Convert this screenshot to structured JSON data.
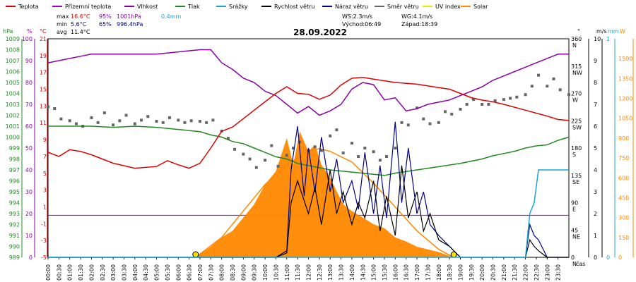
{
  "legend": [
    {
      "label": "Teplota",
      "color": "#dd0000"
    },
    {
      "label": "Přízemní teplota",
      "color": "#9b00c8"
    },
    {
      "label": "Vlhkost",
      "color": "#8a00a8"
    },
    {
      "label": "Tlak",
      "color": "#228822"
    },
    {
      "label": "Srážky",
      "color": "#1aa6d0"
    },
    {
      "label": "Rychlost větru",
      "color": "#000000"
    },
    {
      "label": "Náraz větru",
      "color": "#000080"
    },
    {
      "label": "Směr větru",
      "color": "#666666"
    },
    {
      "label": "UV index",
      "color": "#e8e800"
    },
    {
      "label": "Solar",
      "color": "#ff8800"
    }
  ],
  "stats": {
    "max_label": "max",
    "max_temp": "16.6°C",
    "max_hum": "95%",
    "max_press": "1001hPa",
    "max_rain": "0.4mm",
    "min_label": "min",
    "min_temp": "5.6°C",
    "min_hum": "65%",
    "min_press": "996.4hPa",
    "avg_label": "avg",
    "avg_temp": "11.4°C"
  },
  "wind_info": {
    "ws": "WS:2.3m/s",
    "wg": "WG:4.1m/s",
    "sunrise": "Východ:06:49",
    "sunset": "Západ:18:39"
  },
  "date": "28.09.2022",
  "axis_units": {
    "hpa": "hPa",
    "pct": "%",
    "degc": "°C",
    "deg": "°",
    "ms": "m/s",
    "mm": "mm",
    "w": "W",
    "time": "čas"
  },
  "colors": {
    "temp": "#dd0000",
    "ground_temp": "#9b00c8",
    "humidity": "#8a00a8",
    "pressure": "#228822",
    "rain": "#1aa6d0",
    "wind": "#000000",
    "gust": "#000080",
    "dir": "#666666",
    "solar": "#ff8800",
    "zero_line": "#b000d0"
  },
  "chart_data": {
    "type": "line",
    "title": "28.09.2022",
    "x_ticks": [
      "00:00",
      "00:30",
      "01:00",
      "01:30",
      "02:00",
      "02:30",
      "03:00",
      "03:30",
      "04:00",
      "04:30",
      "05:00",
      "05:30",
      "06:00",
      "06:30",
      "07:00",
      "07:30",
      "08:00",
      "08:30",
      "09:00",
      "09:30",
      "10:00",
      "10:30",
      "11:00",
      "11:30",
      "12:00",
      "12:30",
      "13:00",
      "13:30",
      "14:00",
      "14:30",
      "15:00",
      "15:30",
      "16:00",
      "16:30",
      "17:00",
      "17:30",
      "18:00",
      "18:30",
      "19:00",
      "19:30",
      "20:00",
      "20:30",
      "21:00",
      "21:30",
      "22:00",
      "22:30",
      "23:00",
      "23:30"
    ],
    "xlabel": "čas",
    "axes": {
      "pressure_hpa": {
        "range": [
          989,
          1009
        ],
        "ticks": [
          989,
          990,
          991,
          992,
          993,
          994,
          995,
          996,
          997,
          998,
          999,
          1000,
          1001,
          1002,
          1003,
          1004,
          1005,
          1006,
          1007,
          1008,
          1009
        ]
      },
      "humidity_pct": {
        "range": [
          0,
          100
        ],
        "ticks": [
          0,
          10,
          20,
          30,
          40,
          50,
          60,
          70,
          80,
          90,
          100
        ]
      },
      "temp_c": {
        "range": [
          -5,
          21
        ],
        "ticks": [
          -5,
          -3,
          -1,
          1,
          3,
          5,
          7,
          9,
          11,
          13,
          15,
          17,
          19,
          21
        ]
      },
      "wind_dir_deg": {
        "range": [
          0,
          360
        ],
        "ticks": [
          0,
          45,
          90,
          135,
          180,
          225,
          270,
          315,
          360
        ],
        "labels": [
          "N",
          "NE",
          "E",
          "SE",
          "S",
          "SW",
          "W",
          "NW",
          "N"
        ]
      },
      "wind_ms": {
        "range": [
          0,
          10
        ],
        "ticks": [
          0,
          1,
          2,
          3,
          4,
          5,
          6,
          7,
          8,
          9,
          10
        ]
      },
      "rain_mm": {
        "range": [
          0,
          1
        ],
        "ticks": [
          0,
          1
        ]
      },
      "solar_w": {
        "range": [
          0,
          1650
        ],
        "ticks": [
          0,
          150,
          300,
          450,
          600,
          750,
          900,
          1050,
          1200,
          1350,
          1500
        ]
      }
    },
    "series": [
      {
        "name": "Teplota",
        "axis": "temp_c",
        "x": [
          0,
          0.5,
          1,
          1.5,
          2,
          3,
          4,
          5,
          5.5,
          6,
          6.5,
          7,
          7.5,
          8,
          8.5,
          9,
          9.5,
          10,
          10.5,
          11,
          11.5,
          12,
          12.5,
          13,
          13.5,
          14,
          14.5,
          15,
          15.5,
          16,
          17,
          18,
          18.5,
          19,
          19.5,
          20,
          20.5,
          21,
          22,
          23,
          23.5,
          24
        ],
        "values": [
          7.5,
          7,
          7.8,
          7.6,
          7.2,
          6.2,
          5.6,
          5.8,
          6.5,
          6,
          5.6,
          6.2,
          8,
          10,
          10.5,
          11.5,
          12.5,
          13.5,
          14.5,
          15.3,
          14.5,
          14.4,
          13.8,
          14.3,
          15.5,
          16.3,
          16.4,
          16.2,
          16,
          15.8,
          15.6,
          15.2,
          15,
          14.5,
          14,
          13.7,
          13.5,
          13.2,
          12.5,
          11.8,
          11.4,
          11.3
        ]
      },
      {
        "name": "Vlhkost",
        "axis": "humidity_pct",
        "x": [
          0,
          1,
          1.5,
          2,
          3,
          4,
          5,
          6,
          7,
          7.5,
          8,
          8.5,
          9,
          9.5,
          10,
          10.5,
          11,
          11.5,
          12,
          12.5,
          13,
          13.5,
          14,
          14.5,
          15,
          15.5,
          16,
          16.5,
          17,
          17.5,
          18,
          18.5,
          19,
          19.5,
          20,
          20.5,
          21,
          21.5,
          22,
          22.5,
          23,
          23.5,
          24
        ],
        "values": [
          89,
          91,
          92,
          93,
          93,
          93,
          93,
          94,
          95,
          95,
          89,
          86,
          82,
          80,
          76,
          74,
          70,
          66,
          69,
          65,
          67,
          70,
          77,
          80,
          79,
          72,
          73,
          67,
          68,
          70,
          71,
          72,
          74,
          76,
          78,
          81,
          83,
          85,
          87,
          89,
          91,
          93,
          93
        ]
      },
      {
        "name": "Tlak",
        "axis": "pressure_hpa",
        "x": [
          0,
          1,
          2,
          3,
          4,
          5,
          6,
          7,
          7.5,
          8,
          8.5,
          9,
          9.5,
          10,
          10.5,
          11,
          11.5,
          12,
          13,
          14,
          15,
          15.5,
          16,
          17,
          18,
          19,
          19.5,
          20,
          20.5,
          21,
          21.5,
          22,
          22.5,
          23,
          23.5,
          24
        ],
        "values": [
          1001,
          1001,
          1001,
          1000.9,
          1001,
          1000.9,
          1000.7,
          1000.5,
          1000.2,
          1000,
          999.6,
          999.4,
          999,
          998.6,
          998.2,
          998,
          997.6,
          997.4,
          997,
          996.8,
          996.6,
          996.5,
          996.7,
          997,
          997.3,
          997.6,
          997.8,
          998,
          998.3,
          998.5,
          998.7,
          999,
          999.2,
          999.3,
          999.7,
          1000
        ]
      },
      {
        "name": "Přízemní teplota",
        "axis": "temp_c",
        "x": [
          0,
          24
        ],
        "values": [
          0,
          0
        ]
      },
      {
        "name": "Rychlost větru",
        "axis": "wind_ms",
        "x": [
          0,
          10.5,
          11,
          11.2,
          11.5,
          12,
          12.3,
          12.6,
          13,
          13.3,
          13.6,
          14,
          14.3,
          14.6,
          15,
          15.3,
          15.6,
          16,
          16.3,
          16.6,
          17,
          17.3,
          17.6,
          18,
          18.5,
          19,
          22,
          22.2,
          22.4,
          22.6,
          23,
          24
        ],
        "values": [
          0,
          0,
          0.2,
          2.5,
          3.5,
          2,
          3.2,
          1.5,
          4,
          2,
          3,
          1.5,
          2.5,
          1.8,
          3.5,
          1.2,
          2.8,
          1,
          4.2,
          1.8,
          3,
          1.2,
          2,
          0.8,
          0.5,
          0,
          0,
          0.8,
          0.5,
          0.3,
          0,
          0
        ]
      },
      {
        "name": "Náraz větru",
        "axis": "wind_ms",
        "x": [
          0,
          10.5,
          11,
          11.2,
          11.5,
          11.8,
          12,
          12.3,
          12.6,
          13,
          13.3,
          13.6,
          14,
          14.3,
          14.6,
          15,
          15.3,
          15.6,
          16,
          16.3,
          16.6,
          17,
          17.3,
          17.6,
          18,
          18.5,
          19,
          22,
          22.2,
          22.4,
          22.6,
          23,
          24
        ],
        "values": [
          0,
          0,
          0.3,
          4,
          6,
          2.8,
          5,
          3,
          5.5,
          3,
          4.5,
          2.5,
          3.5,
          2.2,
          4.8,
          2,
          4.2,
          1.8,
          6.2,
          2.5,
          5,
          2,
          3,
          1.5,
          1,
          0.5,
          0,
          0,
          1.5,
          1,
          0.8,
          0,
          0
        ]
      },
      {
        "name": "Srážky",
        "axis": "rain_mm",
        "x": [
          0,
          22,
          22.2,
          22.4,
          22.6,
          23,
          24
        ],
        "values": [
          0,
          0,
          0.2,
          0.25,
          0.4,
          0.4,
          0.4
        ]
      },
      {
        "name": "Solar",
        "axis": "solar_w",
        "x": [
          0,
          6.8,
          7.5,
          8,
          8.5,
          9,
          9.5,
          10,
          10.5,
          11,
          11.3,
          11.6,
          12,
          12.3,
          12.6,
          13,
          13.3,
          13.6,
          14,
          14.5,
          15,
          15.5,
          16,
          16.5,
          17,
          17.5,
          18,
          18.7,
          24
        ],
        "values": [
          0,
          0,
          80,
          150,
          200,
          300,
          400,
          550,
          650,
          900,
          700,
          950,
          800,
          850,
          700,
          600,
          500,
          400,
          350,
          300,
          250,
          220,
          150,
          120,
          80,
          60,
          40,
          0,
          0
        ]
      },
      {
        "name": "Solar (theoretical)",
        "axis": "solar_w",
        "x": [
          6.8,
          8,
          9,
          10,
          11,
          12,
          12.5,
          13,
          14,
          15,
          16,
          17,
          18,
          18.7
        ],
        "values": [
          0,
          150,
          350,
          550,
          700,
          800,
          820,
          800,
          720,
          560,
          380,
          200,
          60,
          0
        ]
      }
    ],
    "wind_direction": {
      "name": "Směr větru",
      "axis": "wind_dir_deg",
      "x": [
        0,
        0.3,
        0.6,
        1,
        1.3,
        1.6,
        2,
        2.3,
        2.6,
        3,
        3.3,
        3.6,
        4,
        4.3,
        4.6,
        5,
        5.3,
        5.6,
        6,
        6.3,
        6.6,
        7,
        7.3,
        7.6,
        8,
        8.3,
        8.6,
        9,
        9.3,
        9.6,
        10,
        10.3,
        10.6,
        11,
        11.3,
        11.6,
        12,
        12.3,
        12.6,
        13,
        13.3,
        13.6,
        14,
        14.3,
        14.6,
        15,
        15.3,
        15.6,
        16,
        16.3,
        16.6,
        17,
        17.3,
        17.6,
        18,
        18.3,
        18.6,
        19,
        19.3,
        19.6,
        20,
        20.3,
        20.6,
        21,
        21.3,
        21.6,
        22,
        22.3,
        22.6,
        23,
        23.3,
        23.6,
        24
      ],
      "values": [
        248,
        245,
        228,
        225,
        220,
        216,
        230,
        222,
        238,
        218,
        225,
        234,
        220,
        226,
        232,
        224,
        222,
        230,
        226,
        222,
        225,
        224,
        222,
        226,
        208,
        196,
        178,
        170,
        162,
        148,
        160,
        184,
        150,
        168,
        180,
        190,
        176,
        182,
        176,
        200,
        210,
        172,
        188,
        166,
        180,
        174,
        160,
        166,
        180,
        222,
        218,
        246,
        228,
        220,
        222,
        240,
        236,
        244,
        252,
        260,
        252,
        252,
        258,
        260,
        262,
        264,
        268,
        282,
        300,
        282,
        294,
        276,
        268
      ]
    }
  }
}
